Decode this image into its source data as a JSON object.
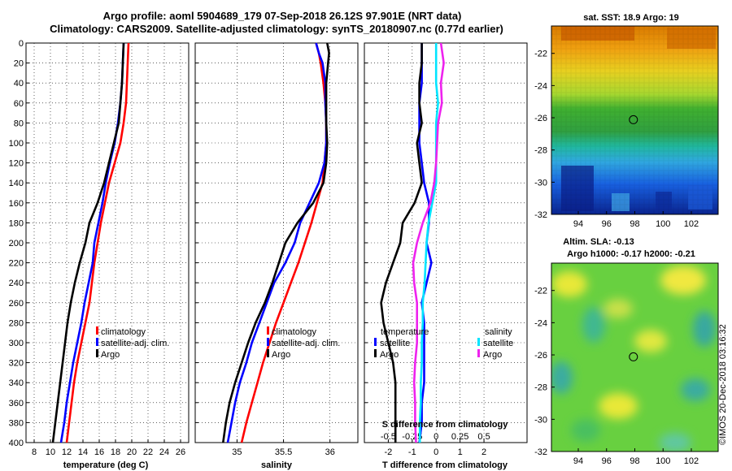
{
  "title_line1": "Argo profile: aoml 5904689_179 07-Sep-2018 26.12S 97.901E (NRT data)",
  "title_line2": "Climatology: CARS2009. Satellite-adjusted climatology: synTS_20180907.nc (0.77d earlier)",
  "watermark": "©IMOS 20-Dec-2018 03:16:32",
  "colors": {
    "climatology": "#ff0000",
    "satellite": "#0000ff",
    "argo": "#000000",
    "s_satellite": "#00e5ff",
    "s_argo": "#ee22ee"
  },
  "depth_ticks": [
    "0",
    "20",
    "40",
    "60",
    "80",
    "100",
    "120",
    "140",
    "160",
    "180",
    "200",
    "220",
    "240",
    "260",
    "280",
    "300",
    "320",
    "340",
    "360",
    "380",
    "400"
  ],
  "chart_data": [
    {
      "type": "line",
      "name": "temperature",
      "xlabel": "temperature (deg C)",
      "ylabel": "depth",
      "xlim": [
        7,
        27
      ],
      "ylim": [
        400,
        0
      ],
      "xticks": [
        "8",
        "10",
        "12",
        "14",
        "16",
        "18",
        "20",
        "22",
        "24",
        "26"
      ],
      "depth": [
        0,
        20,
        40,
        60,
        80,
        100,
        120,
        140,
        160,
        180,
        200,
        220,
        240,
        260,
        280,
        300,
        320,
        340,
        360,
        380,
        400
      ],
      "series": [
        {
          "name": "climatology",
          "color": "#ff0000",
          "values": [
            19.6,
            19.5,
            19.4,
            19.3,
            19.0,
            18.6,
            17.9,
            17.2,
            16.7,
            16.2,
            15.8,
            15.4,
            15.1,
            14.8,
            14.3,
            13.8,
            13.3,
            12.9,
            12.6,
            12.3,
            12.0
          ]
        },
        {
          "name": "satellite-adj. clim.",
          "color": "#0000ff",
          "values": [
            19.0,
            18.9,
            18.8,
            18.6,
            18.3,
            17.9,
            17.3,
            16.8,
            16.4,
            15.9,
            15.4,
            15.2,
            14.7,
            14.2,
            13.8,
            13.3,
            12.8,
            12.4,
            12.0,
            11.7,
            11.3
          ]
        },
        {
          "name": "Argo",
          "color": "#000000",
          "values": [
            19.0,
            18.9,
            18.8,
            18.6,
            18.4,
            17.8,
            17.2,
            16.6,
            15.8,
            14.8,
            14.3,
            13.6,
            13.0,
            12.5,
            12.1,
            11.8,
            11.5,
            11.2,
            10.9,
            10.6,
            10.3
          ]
        }
      ],
      "legend": [
        "climatology",
        "satellite-adj. clim.",
        "Argo"
      ]
    },
    {
      "type": "line",
      "name": "salinity",
      "xlabel": "salinity",
      "ylabel": "depth",
      "xlim": [
        34.55,
        36.3
      ],
      "ylim": [
        400,
        0
      ],
      "xticks": [
        "35",
        "35.5",
        "36"
      ],
      "xtick_values": [
        35,
        35.5,
        36
      ],
      "depth": [
        0,
        10,
        20,
        40,
        60,
        80,
        100,
        120,
        140,
        160,
        180,
        200,
        220,
        240,
        260,
        280,
        300,
        320,
        340,
        360,
        380,
        400
      ],
      "series": [
        {
          "name": "climatology",
          "color": "#ff0000",
          "values": [
            35.85,
            35.88,
            35.9,
            35.93,
            35.95,
            35.96,
            35.96,
            35.94,
            35.92,
            35.86,
            35.8,
            35.73,
            35.66,
            35.58,
            35.5,
            35.42,
            35.35,
            35.28,
            35.22,
            35.16,
            35.1,
            35.05
          ]
        },
        {
          "name": "satellite-adj. clim.",
          "color": "#0000ff",
          "values": [
            35.85,
            35.88,
            35.92,
            35.95,
            35.95,
            35.96,
            35.96,
            35.94,
            35.88,
            35.78,
            35.68,
            35.62,
            35.52,
            35.4,
            35.32,
            35.24,
            35.16,
            35.1,
            35.03,
            34.98,
            34.94,
            34.9
          ]
        },
        {
          "name": "Argo",
          "color": "#000000",
          "values": [
            35.97,
            35.99,
            35.98,
            35.96,
            35.96,
            35.96,
            35.97,
            35.96,
            35.93,
            35.82,
            35.65,
            35.52,
            35.45,
            35.38,
            35.3,
            35.2,
            35.12,
            35.05,
            34.98,
            34.92,
            34.88,
            34.85
          ]
        }
      ],
      "legend": [
        "climatology",
        "satellite-adj. clim.",
        "Argo"
      ]
    },
    {
      "type": "line",
      "name": "difference",
      "xlabel": "T difference from climatology",
      "xlabel_top": "S difference from climatology",
      "ylabel": "depth",
      "xlim": [
        -3,
        3.8
      ],
      "s_xlim": [
        -0.75,
        0.95
      ],
      "ylim": [
        400,
        0
      ],
      "xticks": [
        "-2",
        "-1",
        "0",
        "1",
        "2"
      ],
      "xtick_values": [
        -2,
        -1,
        0,
        1,
        2
      ],
      "s_xticks": [
        "-0.5",
        "-0.25",
        "0",
        "0.25",
        "0.5"
      ],
      "s_xtick_values": [
        -0.5,
        -0.25,
        0,
        0.25,
        0.5
      ],
      "depth": [
        0,
        20,
        40,
        60,
        80,
        100,
        120,
        140,
        160,
        180,
        200,
        220,
        240,
        260,
        280,
        300,
        320,
        340,
        360,
        380,
        400
      ],
      "series": [
        {
          "name": "temperature satellite",
          "group": "T",
          "color": "#0000ff",
          "values": [
            -0.6,
            -0.6,
            -0.6,
            -0.7,
            -0.7,
            -0.7,
            -0.6,
            -0.5,
            -0.3,
            -0.3,
            -0.4,
            -0.2,
            -0.4,
            -0.6,
            -0.5,
            -0.5,
            -0.5,
            -0.5,
            -0.6,
            -0.6,
            -0.7
          ]
        },
        {
          "name": "temperature Argo",
          "group": "T",
          "color": "#000000",
          "values": [
            -0.6,
            -0.6,
            -0.7,
            -0.7,
            -0.6,
            -0.8,
            -0.7,
            -0.6,
            -0.9,
            -1.4,
            -1.5,
            -1.8,
            -2.1,
            -2.3,
            -2.2,
            -2.0,
            -1.8,
            -1.7,
            -1.7,
            -1.7,
            -1.7
          ]
        },
        {
          "name": "salinity satellite",
          "group": "S",
          "color": "#00e5ff",
          "values": [
            0.0,
            0.0,
            0.0,
            0.02,
            0.0,
            0.0,
            0.0,
            0.0,
            -0.04,
            -0.08,
            -0.1,
            -0.11,
            -0.12,
            -0.14,
            -0.14,
            -0.15,
            -0.15,
            -0.16,
            -0.16,
            -0.17,
            -0.17
          ]
        },
        {
          "name": "salinity Argo",
          "group": "S",
          "color": "#ee22ee",
          "values": [
            0.05,
            0.08,
            0.05,
            0.06,
            0.02,
            0.01,
            0.0,
            -0.02,
            -0.06,
            -0.14,
            -0.2,
            -0.24,
            -0.23,
            -0.2,
            -0.2,
            -0.2,
            -0.22,
            -0.23,
            -0.22,
            -0.22,
            -0.21
          ]
        }
      ],
      "legend_temperature_title": "temperature",
      "legend_salinity_title": "salinity",
      "legend_temperature": [
        "satellite",
        "Argo"
      ],
      "legend_salinity": [
        "satellite",
        "Argo"
      ]
    },
    {
      "type": "heatmap",
      "name": "sst map",
      "title": "sat. SST: 18.9 Argo: 19",
      "xticks": [
        "94",
        "96",
        "98",
        "100",
        "102"
      ],
      "yticks": [
        "-22",
        "-24",
        "-26",
        "-28",
        "-30",
        "-32"
      ],
      "xlim": [
        92.1,
        103.9
      ],
      "ylim": [
        -32,
        -20.3
      ],
      "marker": [
        97.9,
        -26.12
      ]
    },
    {
      "type": "heatmap",
      "name": "altimetry map",
      "title_line1": "Altim. SLA: -0.13",
      "title_line2": "Argo h1000: -0.17 h2000: -0.21",
      "xticks": [
        "94",
        "96",
        "98",
        "100",
        "102"
      ],
      "yticks": [
        "-22",
        "-24",
        "-26",
        "-28",
        "-30",
        "-32"
      ],
      "xlim": [
        92.1,
        103.9
      ],
      "ylim": [
        -32,
        -20.3
      ],
      "marker": [
        97.9,
        -26.12
      ]
    }
  ]
}
